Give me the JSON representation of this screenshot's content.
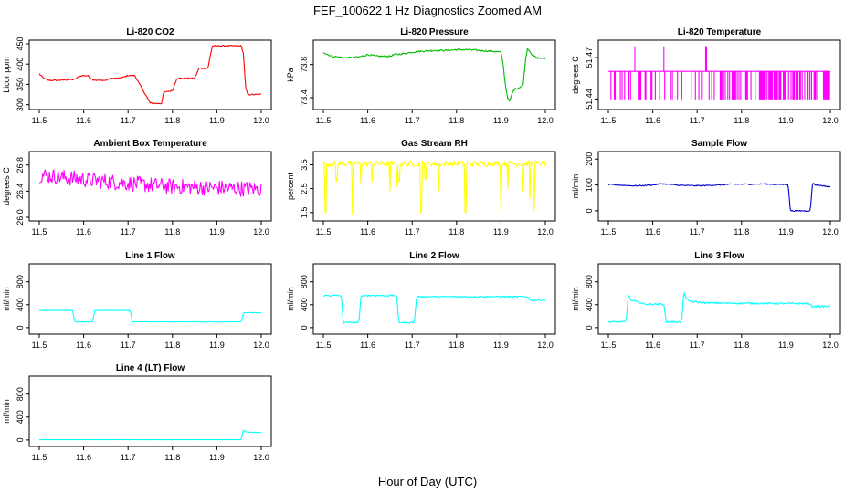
{
  "figure": {
    "title": "FEF_100622  1 Hz Diagnostics Zoomed AM",
    "xlabel": "Hour of Day (UTC)"
  },
  "chart_data": [
    {
      "id": "co2",
      "type": "line",
      "title": "Li-820 CO2",
      "ylabel": "Licor ppm",
      "color": "#ff0000",
      "xlim": [
        11.5,
        12.0
      ],
      "xticks": [
        "11.5",
        "11.6",
        "11.7",
        "11.8",
        "11.9",
        "12.0"
      ],
      "ylim": [
        297,
        450
      ],
      "yticks": [
        "300",
        "350",
        "400",
        "450"
      ],
      "noise": 1.5,
      "x": [
        11.5,
        11.51,
        11.52,
        11.54,
        11.57,
        11.58,
        11.59,
        11.6,
        11.61,
        11.62,
        11.63,
        11.64,
        11.65,
        11.66,
        11.67,
        11.68,
        11.69,
        11.7,
        11.705,
        11.71,
        11.715,
        11.75,
        11.76,
        11.77,
        11.775,
        11.78,
        11.78,
        11.8,
        11.81,
        11.82,
        11.83,
        11.84,
        11.85,
        11.86,
        11.87,
        11.88,
        11.885,
        11.89,
        11.9,
        11.91,
        11.92,
        11.93,
        11.95,
        11.955,
        11.96,
        11.965,
        11.97,
        11.98,
        11.99,
        12.0
      ],
      "y": [
        376,
        365,
        360,
        360,
        362,
        362,
        370,
        372,
        371,
        362,
        360,
        360,
        360,
        365,
        365,
        365,
        368,
        372,
        372,
        372,
        372,
        304,
        303,
        303,
        303,
        330,
        330,
        335,
        365,
        365,
        365,
        365,
        365,
        390,
        390,
        390,
        420,
        445,
        445,
        445,
        445,
        445,
        445,
        445,
        425,
        340,
        325,
        325,
        325,
        325
      ]
    },
    {
      "id": "pressure",
      "type": "line",
      "title": "Li-820 Pressure",
      "ylabel": "kPa",
      "color": "#00bb00",
      "xlim": [
        11.5,
        12.0
      ],
      "xticks": [
        "11.5",
        "11.6",
        "11.7",
        "11.8",
        "11.9",
        "12.0"
      ],
      "ylim": [
        73.3,
        74.05
      ],
      "yticks": [
        "73.4",
        "73.8"
      ],
      "noise": 0.01,
      "x": [
        11.5,
        11.51,
        11.52,
        11.55,
        11.58,
        11.6,
        11.62,
        11.65,
        11.66,
        11.68,
        11.7,
        11.72,
        11.75,
        11.78,
        11.8,
        11.82,
        11.85,
        11.88,
        11.9,
        11.905,
        11.91,
        11.915,
        11.92,
        11.925,
        11.93,
        11.94,
        11.95,
        11.955,
        11.96,
        11.97,
        11.98,
        12.0
      ],
      "y": [
        73.95,
        73.92,
        73.9,
        73.88,
        73.89,
        73.92,
        73.9,
        73.9,
        73.92,
        73.93,
        73.95,
        73.96,
        73.97,
        73.97,
        73.98,
        73.98,
        73.97,
        73.96,
        73.95,
        73.8,
        73.55,
        73.4,
        73.35,
        73.45,
        73.5,
        73.52,
        73.55,
        73.85,
        74.0,
        73.92,
        73.88,
        73.87
      ]
    },
    {
      "id": "licor_temp",
      "type": "line",
      "title": "Li-820 Temperature",
      "ylabel": "degrees C",
      "color": "#ff00ff",
      "xlim": [
        11.5,
        12.0
      ],
      "xticks": [
        "11.5",
        "11.6",
        "11.7",
        "11.8",
        "11.9",
        "12.0"
      ],
      "ylim": [
        51.435,
        51.48
      ],
      "yticks": [
        "51.44",
        "51.47"
      ],
      "baseline": 51.46,
      "low": 51.44,
      "high": 51.478,
      "spikes_up": [
        11.56,
        11.625,
        11.72
      ]
    },
    {
      "id": "ambient_temp",
      "type": "line",
      "title": "Ambient Box Temperature",
      "ylabel": "degrees C",
      "color": "#ff00ff",
      "xlim": [
        11.5,
        12.0
      ],
      "xticks": [
        "11.5",
        "11.6",
        "11.7",
        "11.8",
        "11.9",
        "12.0"
      ],
      "ylim": [
        26.0,
        26.95
      ],
      "yticks": [
        "26.0",
        "26.4",
        "26.8"
      ],
      "trend_x": [
        11.5,
        11.6,
        11.7,
        11.8,
        11.9,
        12.0
      ],
      "trend_y": [
        26.65,
        26.58,
        26.52,
        26.47,
        26.45,
        26.43
      ],
      "noise": 0.12
    },
    {
      "id": "gas_rh",
      "type": "line",
      "title": "Gas Stream RH",
      "ylabel": "percent",
      "color": "#ffff00",
      "xlim": [
        11.5,
        12.0
      ],
      "xticks": [
        "11.5",
        "11.6",
        "11.7",
        "11.8",
        "11.9",
        "12.0"
      ],
      "ylim": [
        1.3,
        3.9
      ],
      "yticks": [
        "1.5",
        "2.5",
        "3.5"
      ],
      "baseline": 3.55,
      "noise": 0.12,
      "dips_x": [
        11.505,
        11.53,
        11.565,
        11.585,
        11.61,
        11.65,
        11.665,
        11.67,
        11.72,
        11.73,
        11.76,
        11.82,
        11.9,
        11.915,
        11.95,
        11.965,
        11.975
      ],
      "dips_y": [
        1.5,
        2.8,
        1.4,
        2.7,
        2.8,
        2.4,
        2.6,
        2.8,
        1.5,
        2.9,
        2.4,
        1.5,
        1.5,
        2.5,
        2.4,
        2.1,
        1.6
      ]
    },
    {
      "id": "sample_flow",
      "type": "line",
      "title": "Sample Flow",
      "ylabel": "ml/min",
      "color": "#0000cc",
      "xlim": [
        11.5,
        12.0
      ],
      "xticks": [
        "11.5",
        "11.6",
        "11.7",
        "11.8",
        "11.9",
        "12.0"
      ],
      "ylim": [
        -25,
        215
      ],
      "yticks": [
        "0",
        "100",
        "200"
      ],
      "noise": 2,
      "x": [
        11.5,
        11.52,
        11.55,
        11.57,
        11.6,
        11.62,
        11.65,
        11.67,
        11.7,
        11.72,
        11.75,
        11.78,
        11.8,
        11.83,
        11.85,
        11.88,
        11.905,
        11.91,
        11.95,
        11.955,
        11.96,
        11.965,
        11.97,
        11.99,
        12.0
      ],
      "y": [
        102,
        100,
        97,
        97,
        100,
        105,
        100,
        98,
        97,
        98,
        100,
        103,
        103,
        103,
        104,
        102,
        102,
        0,
        0,
        0,
        112,
        100,
        100,
        95,
        92
      ]
    },
    {
      "id": "line1",
      "type": "line",
      "title": "Line 1 Flow",
      "ylabel": "ml/min",
      "color": "#00ffff",
      "xlim": [
        11.5,
        12.0
      ],
      "xticks": [
        "11.5",
        "11.6",
        "11.7",
        "11.8",
        "11.9",
        "12.0"
      ],
      "ylim": [
        -50,
        1050
      ],
      "yticks": [
        "0",
        "400",
        "800"
      ],
      "noise": 4,
      "x": [
        11.5,
        11.575,
        11.58,
        11.62,
        11.625,
        11.705,
        11.71,
        11.955,
        11.96,
        12.0
      ],
      "y": [
        300,
        300,
        100,
        100,
        300,
        300,
        100,
        100,
        260,
        260
      ]
    },
    {
      "id": "line2",
      "type": "line",
      "title": "Line 2 Flow",
      "ylabel": "ml/min",
      "color": "#00ffff",
      "xlim": [
        11.5,
        12.0
      ],
      "xticks": [
        "11.5",
        "11.6",
        "11.7",
        "11.8",
        "11.9",
        "12.0"
      ],
      "ylim": [
        -50,
        1050
      ],
      "yticks": [
        "0",
        "400",
        "800"
      ],
      "noise": 12,
      "x": [
        11.5,
        11.54,
        11.545,
        11.58,
        11.585,
        11.665,
        11.67,
        11.705,
        11.71,
        11.96,
        11.965,
        12.0
      ],
      "y": [
        560,
        560,
        90,
        90,
        560,
        560,
        90,
        90,
        540,
        540,
        480,
        480
      ]
    },
    {
      "id": "line3",
      "type": "line",
      "title": "Line 3 Flow",
      "ylabel": "ml/min",
      "color": "#00ffff",
      "xlim": [
        11.5,
        12.0
      ],
      "xticks": [
        "11.5",
        "11.6",
        "11.7",
        "11.8",
        "11.9",
        "12.0"
      ],
      "ylim": [
        -50,
        1050
      ],
      "yticks": [
        "0",
        "400",
        "800"
      ],
      "noise": 15,
      "x": [
        11.5,
        11.54,
        11.545,
        11.55,
        11.575,
        11.58,
        11.625,
        11.63,
        11.665,
        11.67,
        11.68,
        11.72,
        11.8,
        11.95,
        11.96,
        12.0
      ],
      "y": [
        100,
        100,
        600,
        480,
        430,
        410,
        410,
        100,
        100,
        610,
        460,
        430,
        425,
        420,
        370,
        370
      ]
    },
    {
      "id": "line4",
      "type": "line",
      "title": "Line 4 (LT) Flow",
      "ylabel": "ml/min",
      "color": "#00ffff",
      "xlim": [
        11.5,
        12.0
      ],
      "xticks": [
        "11.5",
        "11.6",
        "11.7",
        "11.8",
        "11.9",
        "12.0"
      ],
      "ylim": [
        -50,
        1050
      ],
      "yticks": [
        "0",
        "400",
        "800"
      ],
      "noise": 3,
      "x": [
        11.5,
        11.955,
        11.96,
        11.965,
        12.0
      ],
      "y": [
        5,
        5,
        180,
        140,
        130
      ]
    }
  ]
}
